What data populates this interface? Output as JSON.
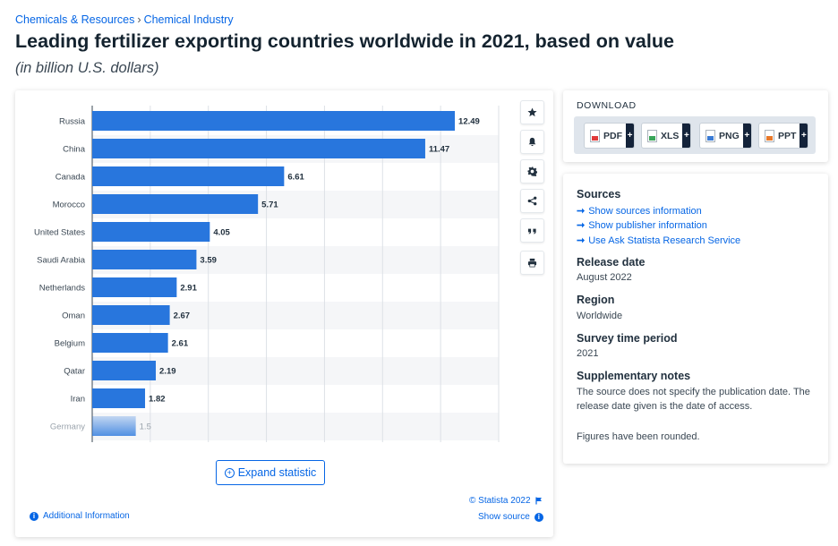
{
  "breadcrumb": {
    "parent": "Chemicals & Resources",
    "separator": "›",
    "current": "Chemical Industry"
  },
  "title": "Leading fertilizer exporting countries worldwide in 2021, based on value",
  "subtitle": "(in billion U.S. dollars)",
  "chart_data": {
    "type": "bar",
    "orientation": "horizontal",
    "categories": [
      "Russia",
      "China",
      "Canada",
      "Morocco",
      "United States",
      "Saudi Arabia",
      "Netherlands",
      "Oman",
      "Belgium",
      "Qatar",
      "Iran",
      "Germany"
    ],
    "values": [
      12.49,
      11.47,
      6.61,
      5.71,
      4.05,
      3.59,
      2.91,
      2.67,
      2.61,
      2.19,
      1.82,
      1.5
    ],
    "value_labels": [
      "12.49",
      "11.47",
      "6.61",
      "5.71",
      "4.05",
      "3.59",
      "2.91",
      "2.67",
      "2.61",
      "2.19",
      "1.82",
      "1.5"
    ],
    "xlim": [
      0,
      14
    ],
    "grid": true,
    "bar_color": "#2876dd",
    "last_bar_faded": true
  },
  "expand_label": "Expand statistic",
  "copyright": "© Statista 2022",
  "show_source": "Show source",
  "additional_info": "Additional Information",
  "tools": [
    "star-icon",
    "bell-icon",
    "gear-icon",
    "share-icon",
    "quote-icon",
    "print-icon"
  ],
  "download": {
    "title": "DOWNLOAD",
    "buttons": [
      {
        "label": "PDF",
        "color": "#e03a3a"
      },
      {
        "label": "XLS",
        "color": "#3aa65a"
      },
      {
        "label": "PNG",
        "color": "#3a7bd5"
      },
      {
        "label": "PPT",
        "color": "#e8792a"
      }
    ],
    "plus": "+"
  },
  "meta": {
    "sources_h": "Sources",
    "links": [
      "Show sources information",
      "Show publisher information",
      "Use Ask Statista Research Service"
    ],
    "release_h": "Release date",
    "release_v": "August 2022",
    "region_h": "Region",
    "region_v": "Worldwide",
    "survey_h": "Survey time period",
    "survey_v": "2021",
    "notes_h": "Supplementary notes",
    "notes_v": "The source does not specify the publication date. The release date given is the date of access.",
    "notes_v2": "Figures have been rounded."
  },
  "colors": {
    "accent": "#0666e5",
    "bar": "#2876dd",
    "dark": "#14233a"
  }
}
